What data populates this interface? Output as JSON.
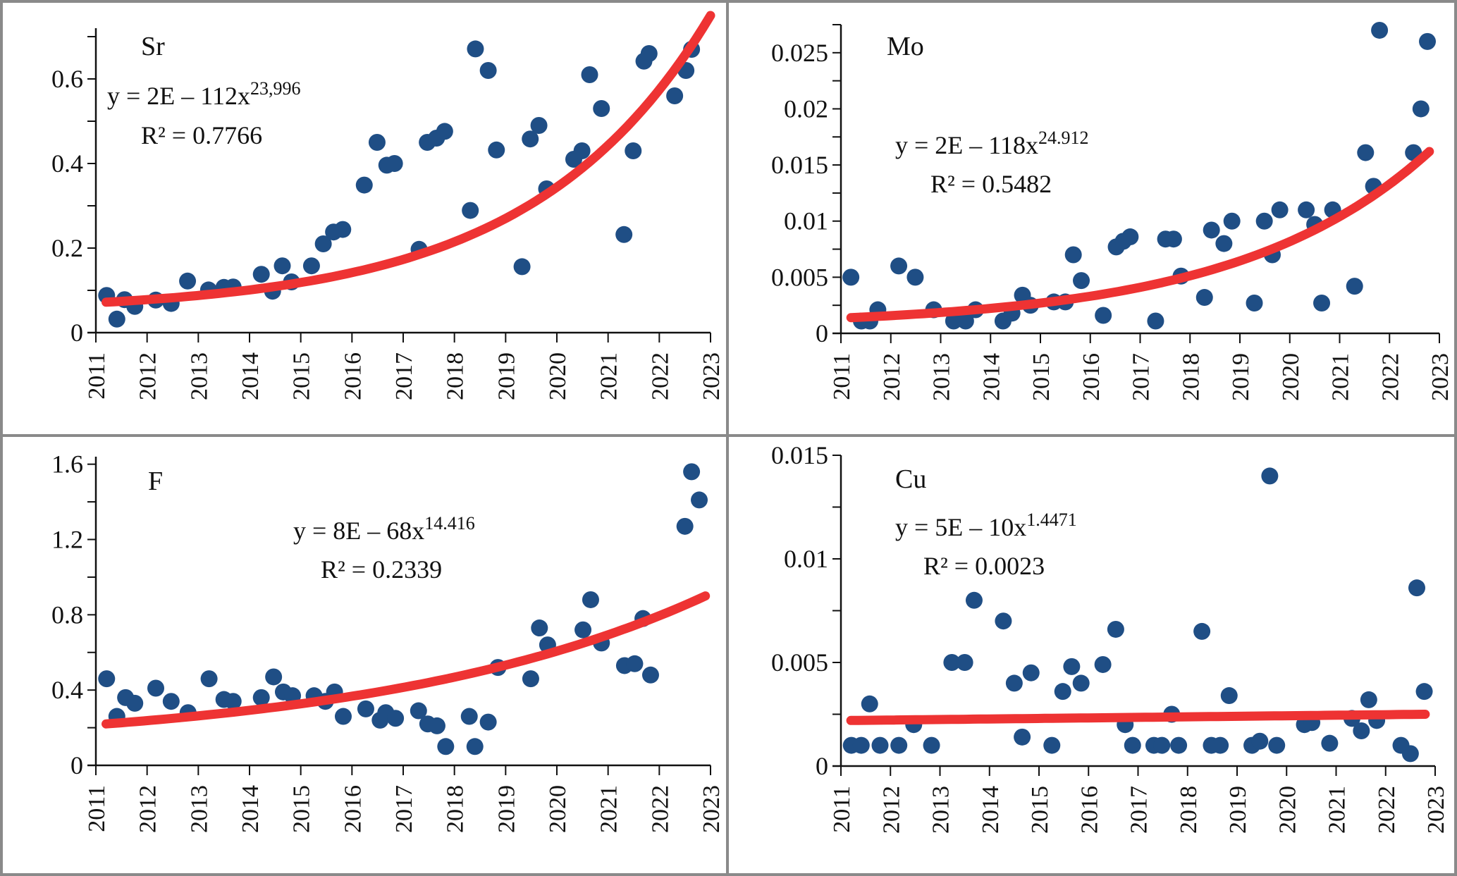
{
  "colors": {
    "point": "#1f4e85",
    "trend": "#ee3333",
    "axis": "#111111",
    "border": "#8a8a8a"
  },
  "chart_data": [
    {
      "id": "sr",
      "type": "scatter",
      "title": "Sr",
      "xlabel": "",
      "ylabel": "",
      "xlim": [
        2011,
        2023
      ],
      "ylim": [
        0,
        0.72
      ],
      "x_ticks": [
        "2011",
        "2012",
        "2013",
        "2014",
        "2015",
        "2016",
        "2017",
        "2018",
        "2019",
        "2020",
        "2021",
        "2022",
        "2023"
      ],
      "y_ticks": [
        {
          "v": 0,
          "label": "0"
        },
        {
          "v": 0.2,
          "label": "0.2"
        },
        {
          "v": 0.4,
          "label": "0.4"
        },
        {
          "v": 0.6,
          "label": "0.6"
        }
      ],
      "y_minor_step": 0.1,
      "grid": false,
      "trend": {
        "type": "power",
        "equation_main": "y = 2E – 112x",
        "equation_exp": "23,996",
        "r2_label": "R² = 0.7766",
        "start": [
          2011.2,
          0.072
        ],
        "end": [
          2023,
          0.75
        ],
        "curvature": 3.4
      },
      "points": [
        [
          2011.21,
          0.088
        ],
        [
          2011.41,
          0.032
        ],
        [
          2011.56,
          0.078
        ],
        [
          2011.76,
          0.062
        ],
        [
          2012.17,
          0.077
        ],
        [
          2012.47,
          0.069
        ],
        [
          2012.79,
          0.122
        ],
        [
          2013.2,
          0.101
        ],
        [
          2013.5,
          0.107
        ],
        [
          2013.68,
          0.108
        ],
        [
          2014.23,
          0.138
        ],
        [
          2014.45,
          0.098
        ],
        [
          2014.64,
          0.158
        ],
        [
          2014.82,
          0.12
        ],
        [
          2015.21,
          0.158
        ],
        [
          2015.44,
          0.21
        ],
        [
          2015.64,
          0.238
        ],
        [
          2015.82,
          0.244
        ],
        [
          2016.24,
          0.349
        ],
        [
          2016.49,
          0.45
        ],
        [
          2016.68,
          0.396
        ],
        [
          2016.83,
          0.4
        ],
        [
          2017.31,
          0.197
        ],
        [
          2017.47,
          0.45
        ],
        [
          2017.65,
          0.46
        ],
        [
          2017.81,
          0.476
        ],
        [
          2018.31,
          0.289
        ],
        [
          2018.41,
          0.671
        ],
        [
          2018.66,
          0.62
        ],
        [
          2018.82,
          0.432
        ],
        [
          2019.32,
          0.156
        ],
        [
          2019.48,
          0.458
        ],
        [
          2019.65,
          0.49
        ],
        [
          2019.8,
          0.34
        ],
        [
          2020.33,
          0.41
        ],
        [
          2020.49,
          0.43
        ],
        [
          2020.64,
          0.61
        ],
        [
          2020.87,
          0.53
        ],
        [
          2021.31,
          0.232
        ],
        [
          2021.49,
          0.43
        ],
        [
          2021.7,
          0.642
        ],
        [
          2021.8,
          0.66
        ],
        [
          2022.3,
          0.56
        ],
        [
          2022.52,
          0.62
        ],
        [
          2022.63,
          0.67
        ]
      ]
    },
    {
      "id": "mo",
      "type": "scatter",
      "title": "Mo",
      "xlabel": "",
      "ylabel": "",
      "xlim": [
        2011,
        2023
      ],
      "ylim": [
        0,
        0.0275
      ],
      "x_ticks": [
        "2011",
        "2012",
        "2013",
        "2014",
        "2015",
        "2016",
        "2017",
        "2018",
        "2019",
        "2020",
        "2021",
        "2022",
        "2023"
      ],
      "y_ticks": [
        {
          "v": 0,
          "label": "0"
        },
        {
          "v": 0.005,
          "label": "0.005"
        },
        {
          "v": 0.01,
          "label": "0.01"
        },
        {
          "v": 0.015,
          "label": "0.015"
        },
        {
          "v": 0.02,
          "label": "0.02"
        },
        {
          "v": 0.025,
          "label": "0.025"
        }
      ],
      "y_minor_step": 0.0025,
      "grid": false,
      "trend": {
        "type": "power",
        "equation_main": "y = 2E – 118x",
        "equation_exp": "24.912",
        "r2_label": "R² = 0.5482",
        "start": [
          2011.2,
          0.0014
        ],
        "end": [
          2022.8,
          0.0162
        ],
        "curvature": 3.0
      },
      "points": [
        [
          2011.2,
          0.005
        ],
        [
          2011.41,
          0.0011
        ],
        [
          2011.58,
          0.0011
        ],
        [
          2011.74,
          0.0021
        ],
        [
          2012.16,
          0.006
        ],
        [
          2012.49,
          0.005
        ],
        [
          2012.86,
          0.0021
        ],
        [
          2013.26,
          0.0011
        ],
        [
          2013.5,
          0.0011
        ],
        [
          2013.7,
          0.0021
        ],
        [
          2014.25,
          0.0011
        ],
        [
          2014.43,
          0.0018
        ],
        [
          2014.64,
          0.0034
        ],
        [
          2014.8,
          0.0025
        ],
        [
          2015.27,
          0.0028
        ],
        [
          2015.5,
          0.0028
        ],
        [
          2015.66,
          0.007
        ],
        [
          2015.82,
          0.0047
        ],
        [
          2016.26,
          0.0016
        ],
        [
          2016.52,
          0.0077
        ],
        [
          2016.66,
          0.0082
        ],
        [
          2016.8,
          0.0086
        ],
        [
          2017.31,
          0.0011
        ],
        [
          2017.51,
          0.0084
        ],
        [
          2017.67,
          0.0084
        ],
        [
          2017.82,
          0.0051
        ],
        [
          2018.29,
          0.0032
        ],
        [
          2018.43,
          0.0092
        ],
        [
          2018.68,
          0.008
        ],
        [
          2018.84,
          0.01
        ],
        [
          2019.29,
          0.0027
        ],
        [
          2019.49,
          0.01
        ],
        [
          2019.65,
          0.007
        ],
        [
          2019.8,
          0.011
        ],
        [
          2020.33,
          0.011
        ],
        [
          2020.5,
          0.0097
        ],
        [
          2020.64,
          0.0027
        ],
        [
          2020.86,
          0.011
        ],
        [
          2021.3,
          0.0042
        ],
        [
          2021.52,
          0.0161
        ],
        [
          2021.68,
          0.0131
        ],
        [
          2021.8,
          0.027
        ],
        [
          2022.48,
          0.0161
        ],
        [
          2022.63,
          0.02
        ],
        [
          2022.76,
          0.026
        ]
      ]
    },
    {
      "id": "f",
      "type": "scatter",
      "title": "F",
      "xlabel": "",
      "ylabel": "",
      "xlim": [
        2011,
        2023
      ],
      "ylim": [
        0,
        1.64
      ],
      "x_ticks": [
        "2011",
        "2012",
        "2013",
        "2014",
        "2015",
        "2016",
        "2017",
        "2018",
        "2019",
        "2020",
        "2021",
        "2022",
        "2023"
      ],
      "y_ticks": [
        {
          "v": 0,
          "label": "0"
        },
        {
          "v": 0.4,
          "label": "0.4"
        },
        {
          "v": 0.8,
          "label": "0.8"
        },
        {
          "v": 1.2,
          "label": "1.2"
        },
        {
          "v": 1.6,
          "label": "1.6"
        }
      ],
      "y_minor_step": 0.2,
      "grid": false,
      "trend": {
        "type": "power",
        "equation_main": "y = 8E – 68x",
        "equation_exp": "14.416",
        "r2_label": "R² = 0.2339",
        "start": [
          2011.2,
          0.22
        ],
        "end": [
          2022.9,
          0.9
        ],
        "curvature": 1.8
      },
      "points": [
        [
          2011.21,
          0.46
        ],
        [
          2011.41,
          0.26
        ],
        [
          2011.58,
          0.36
        ],
        [
          2011.76,
          0.33
        ],
        [
          2012.17,
          0.41
        ],
        [
          2012.47,
          0.34
        ],
        [
          2012.8,
          0.28
        ],
        [
          2013.21,
          0.46
        ],
        [
          2013.5,
          0.35
        ],
        [
          2013.68,
          0.34
        ],
        [
          2014.23,
          0.36
        ],
        [
          2014.47,
          0.47
        ],
        [
          2014.66,
          0.39
        ],
        [
          2014.84,
          0.37
        ],
        [
          2015.26,
          0.37
        ],
        [
          2015.48,
          0.34
        ],
        [
          2015.66,
          0.39
        ],
        [
          2015.83,
          0.26
        ],
        [
          2016.27,
          0.3
        ],
        [
          2016.55,
          0.24
        ],
        [
          2016.66,
          0.28
        ],
        [
          2016.85,
          0.25
        ],
        [
          2017.3,
          0.29
        ],
        [
          2017.48,
          0.22
        ],
        [
          2017.66,
          0.21
        ],
        [
          2017.83,
          0.1
        ],
        [
          2018.29,
          0.26
        ],
        [
          2018.4,
          0.1
        ],
        [
          2018.66,
          0.23
        ],
        [
          2018.85,
          0.52
        ],
        [
          2019.49,
          0.46
        ],
        [
          2019.66,
          0.73
        ],
        [
          2019.82,
          0.64
        ],
        [
          2020.51,
          0.72
        ],
        [
          2020.66,
          0.88
        ],
        [
          2020.87,
          0.65
        ],
        [
          2021.32,
          0.53
        ],
        [
          2021.52,
          0.54
        ],
        [
          2021.68,
          0.78
        ],
        [
          2021.83,
          0.48
        ],
        [
          2022.5,
          1.27
        ],
        [
          2022.63,
          1.56
        ],
        [
          2022.78,
          1.41
        ]
      ]
    },
    {
      "id": "cu",
      "type": "scatter",
      "title": "Cu",
      "xlabel": "",
      "ylabel": "",
      "xlim": [
        2011,
        2023
      ],
      "ylim": [
        0,
        0.015
      ],
      "x_ticks": [
        "2011",
        "2012",
        "2013",
        "2014",
        "2015",
        "2016",
        "2017",
        "2018",
        "2019",
        "2020",
        "2021",
        "2022",
        "2023"
      ],
      "y_ticks": [
        {
          "v": 0,
          "label": "0"
        },
        {
          "v": 0.005,
          "label": "0.005"
        },
        {
          "v": 0.01,
          "label": "0.01"
        },
        {
          "v": 0.015,
          "label": "0.015"
        }
      ],
      "y_minor_step": 0.0025,
      "grid": false,
      "trend": {
        "type": "power",
        "equation_main": "y = 5E – 10x",
        "equation_exp": "1.4471",
        "r2_label": "R² = 0.0023",
        "start": [
          2011.2,
          0.0022
        ],
        "end": [
          2022.8,
          0.0025
        ],
        "curvature": 1.0
      },
      "points": [
        [
          2011.21,
          0.001
        ],
        [
          2011.41,
          0.001
        ],
        [
          2011.58,
          0.003
        ],
        [
          2011.79,
          0.001
        ],
        [
          2012.17,
          0.001
        ],
        [
          2012.47,
          0.002
        ],
        [
          2012.83,
          0.001
        ],
        [
          2013.24,
          0.005
        ],
        [
          2013.5,
          0.005
        ],
        [
          2013.69,
          0.008
        ],
        [
          2014.28,
          0.007
        ],
        [
          2014.5,
          0.004
        ],
        [
          2014.66,
          0.0014
        ],
        [
          2014.84,
          0.0045
        ],
        [
          2015.26,
          0.001
        ],
        [
          2015.48,
          0.0036
        ],
        [
          2015.66,
          0.0048
        ],
        [
          2015.85,
          0.004
        ],
        [
          2016.29,
          0.0049
        ],
        [
          2016.55,
          0.0066
        ],
        [
          2016.74,
          0.002
        ],
        [
          2016.89,
          0.001
        ],
        [
          2017.32,
          0.001
        ],
        [
          2017.48,
          0.001
        ],
        [
          2017.68,
          0.0025
        ],
        [
          2017.82,
          0.001
        ],
        [
          2018.29,
          0.0065
        ],
        [
          2018.48,
          0.001
        ],
        [
          2018.66,
          0.001
        ],
        [
          2018.84,
          0.0034
        ],
        [
          2019.3,
          0.001
        ],
        [
          2019.46,
          0.0012
        ],
        [
          2019.66,
          0.014
        ],
        [
          2019.8,
          0.001
        ],
        [
          2020.36,
          0.002
        ],
        [
          2020.51,
          0.0021
        ],
        [
          2020.87,
          0.0011
        ],
        [
          2021.32,
          0.0023
        ],
        [
          2021.51,
          0.0017
        ],
        [
          2021.66,
          0.0032
        ],
        [
          2021.82,
          0.0022
        ],
        [
          2022.31,
          0.001
        ],
        [
          2022.5,
          0.0006
        ],
        [
          2022.63,
          0.0086
        ],
        [
          2022.78,
          0.0036
        ]
      ]
    }
  ]
}
